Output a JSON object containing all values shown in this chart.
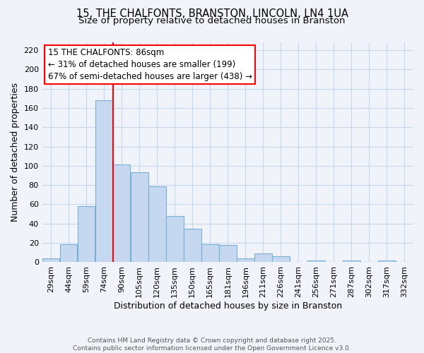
{
  "title_line1": "15, THE CHALFONTS, BRANSTON, LINCOLN, LN4 1UA",
  "title_line2": "Size of property relative to detached houses in Branston",
  "xlabel": "Distribution of detached houses by size in Branston",
  "ylabel": "Number of detached properties",
  "footnote": "Contains HM Land Registry data © Crown copyright and database right 2025.\nContains public sector information licensed under the Open Government Licence v3.0.",
  "bin_labels": [
    "29sqm",
    "44sqm",
    "59sqm",
    "74sqm",
    "90sqm",
    "105sqm",
    "120sqm",
    "135sqm",
    "150sqm",
    "165sqm",
    "181sqm",
    "196sqm",
    "211sqm",
    "226sqm",
    "241sqm",
    "256sqm",
    "271sqm",
    "287sqm",
    "302sqm",
    "317sqm",
    "332sqm"
  ],
  "bar_values": [
    4,
    19,
    58,
    168,
    101,
    93,
    79,
    48,
    35,
    19,
    18,
    4,
    9,
    6,
    0,
    2,
    0,
    2,
    0,
    2,
    0
  ],
  "bar_color": "#c5d8f0",
  "bar_edge_color": "#7aafd4",
  "vline_x_index": 4,
  "vline_color": "red",
  "vline_label": "15 THE CHALFONTS: 86sqm",
  "annotation_line2": "← 31% of detached houses are smaller (199)",
  "annotation_line3": "67% of semi-detached houses are larger (438) →",
  "annotation_box_color": "red",
  "annotation_fill": "white",
  "ylim": [
    0,
    228
  ],
  "yticks": [
    0,
    20,
    40,
    60,
    80,
    100,
    120,
    140,
    160,
    180,
    200,
    220
  ],
  "grid_color": "#c8d8ec",
  "background_color": "#f0f4fa",
  "title_fontsize": 10.5,
  "subtitle_fontsize": 9.5,
  "axis_label_fontsize": 9,
  "tick_fontsize": 8,
  "annotation_fontsize": 8.5,
  "footnote_fontsize": 6.5
}
